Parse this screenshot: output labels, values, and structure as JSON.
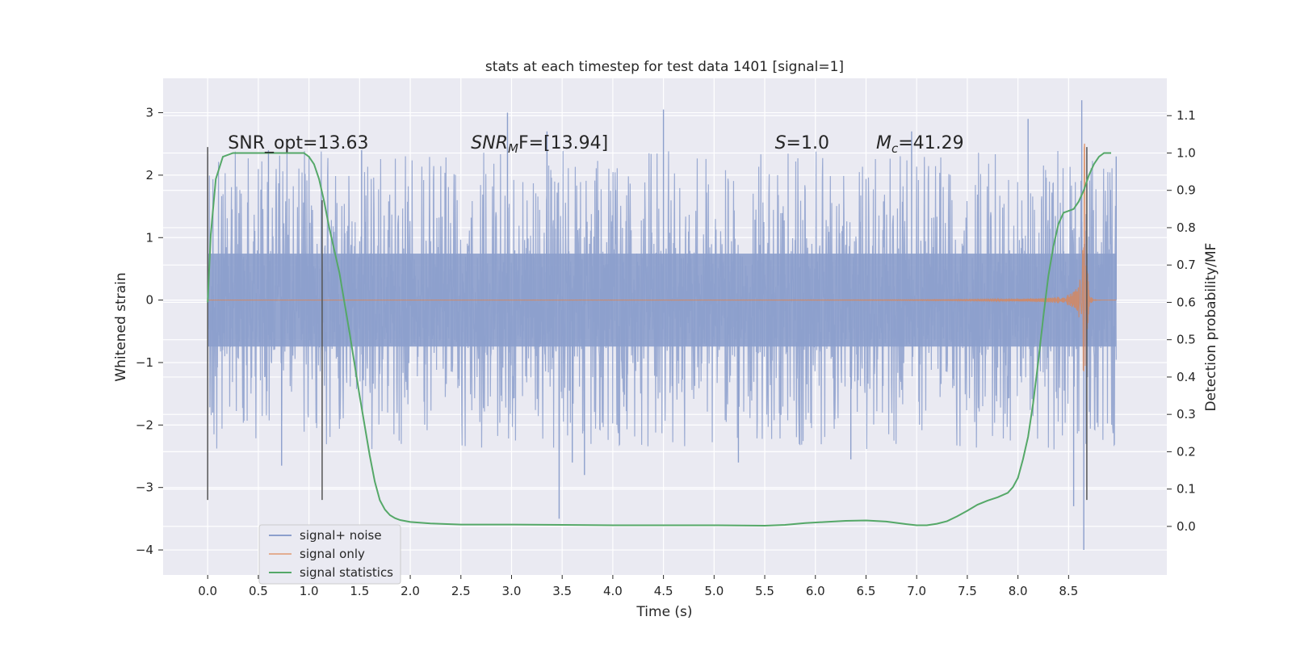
{
  "chart_data": {
    "type": "line",
    "title": "stats at each timestep for test data 1401 [signal=1]",
    "xlabel": "Time (s)",
    "ylabel": "Whitened strain",
    "ylabel_right": "Detection probability/MF",
    "xlim": [
      -0.44,
      9.47
    ],
    "ylim": [
      -4.4,
      3.55
    ],
    "ylim_right": [
      -0.13,
      1.2
    ],
    "x_ticks": [
      0.0,
      0.5,
      1.0,
      1.5,
      2.0,
      2.5,
      3.0,
      3.5,
      4.0,
      4.5,
      5.0,
      5.5,
      6.0,
      6.5,
      7.0,
      7.5,
      8.0,
      8.5
    ],
    "x_tick_labels": [
      "0.0",
      "0.5",
      "1.0",
      "1.5",
      "2.0",
      "2.5",
      "3.0",
      "3.5",
      "4.0",
      "4.5",
      "5.0",
      "5.5",
      "6.0",
      "6.5",
      "7.0",
      "7.5",
      "8.0",
      "8.5"
    ],
    "y_ticks": [
      3,
      2,
      1,
      0,
      -1,
      -2,
      -3,
      -4
    ],
    "y_tick_labels": [
      "3",
      "2",
      "1",
      "0",
      "−1",
      "−2",
      "−3",
      "−4"
    ],
    "y_ticks_right": [
      1.1,
      1.0,
      0.9,
      0.8,
      0.7,
      0.6,
      0.5,
      0.4,
      0.3,
      0.2,
      0.1,
      0.0
    ],
    "y_tick_labels_right": [
      "1.1",
      "1.0",
      "0.9",
      "0.8",
      "0.7",
      "0.6",
      "0.5",
      "0.4",
      "0.3",
      "0.2",
      "0.1",
      "0.0"
    ],
    "grid": true,
    "legend_position": "lower-left",
    "annotations": [
      {
        "prefix": "SNR_opt=13.63",
        "italic": "",
        "sub": "",
        "suffix": "",
        "x": 0.2
      },
      {
        "prefix": "",
        "italic": "SNR",
        "sub": "M",
        "suffix": "F=[13.94]",
        "x": 2.6
      },
      {
        "prefix": "",
        "italic": "S",
        "sub": "",
        "suffix": "=1.0",
        "x": 5.6
      },
      {
        "prefix": "",
        "italic": "M",
        "sub": "c",
        "suffix": "=41.29",
        "x": 6.6
      }
    ],
    "annotation_y": 2.5,
    "vlines": [
      {
        "x": 0.0,
        "ymin": -3.2,
        "ymax": 2.45
      },
      {
        "x": 1.13,
        "ymin": -3.2,
        "ymax": 1.6
      },
      {
        "x": 8.68,
        "ymin": -3.2,
        "ymax": 2.45
      }
    ],
    "series": [
      {
        "name": "signal+ noise",
        "color": "#8c9fcc",
        "axis": "left",
        "x_range": [
          0.0,
          8.97
        ],
        "core_amplitude": 1.2,
        "typical_peak": 2.0,
        "spikes": [
          [
            0.0,
            2.3
          ],
          [
            0.05,
            -1.8
          ],
          [
            0.6,
            2.4
          ],
          [
            0.73,
            -2.65
          ],
          [
            1.52,
            2.4
          ],
          [
            2.96,
            3.0
          ],
          [
            3.35,
            2.7
          ],
          [
            3.47,
            -3.5
          ],
          [
            3.6,
            -2.6
          ],
          [
            3.72,
            -2.8
          ],
          [
            4.5,
            3.05
          ],
          [
            5.24,
            -2.6
          ],
          [
            6.35,
            -2.55
          ],
          [
            6.95,
            2.7
          ],
          [
            8.1,
            2.9
          ],
          [
            8.55,
            -3.3
          ],
          [
            8.63,
            3.2
          ],
          [
            8.65,
            -4.0
          ],
          [
            8.97,
            2.3
          ]
        ]
      },
      {
        "name": "signal only",
        "color": "#dd8452",
        "axis": "left",
        "chirp_start": 0.0,
        "chirp_merger": 8.66,
        "chirp_end": 8.97,
        "peak_amplitude": 2.5
      },
      {
        "name": "signal statistics",
        "color": "#55a868",
        "axis": "right",
        "x": [
          0.0,
          0.03,
          0.08,
          0.15,
          0.25,
          0.45,
          0.75,
          0.95,
          1.0,
          1.05,
          1.1,
          1.15,
          1.2,
          1.3,
          1.4,
          1.5,
          1.6,
          1.65,
          1.7,
          1.75,
          1.8,
          1.85,
          1.9,
          2.0,
          2.2,
          2.5,
          3.0,
          3.5,
          4.0,
          4.5,
          5.0,
          5.5,
          5.7,
          5.9,
          6.1,
          6.3,
          6.5,
          6.7,
          6.9,
          7.0,
          7.1,
          7.2,
          7.3,
          7.4,
          7.5,
          7.6,
          7.7,
          7.8,
          7.9,
          7.95,
          8.0,
          8.05,
          8.1,
          8.15,
          8.2,
          8.25,
          8.3,
          8.35,
          8.4,
          8.45,
          8.5,
          8.55,
          8.6,
          8.65,
          8.7,
          8.75,
          8.8,
          8.85,
          8.9,
          8.92
        ],
        "y": [
          0.6,
          0.78,
          0.93,
          0.99,
          1.0,
          1.0,
          1.0,
          1.0,
          0.99,
          0.97,
          0.93,
          0.87,
          0.8,
          0.68,
          0.52,
          0.35,
          0.19,
          0.12,
          0.07,
          0.045,
          0.03,
          0.022,
          0.017,
          0.012,
          0.008,
          0.005,
          0.005,
          0.004,
          0.003,
          0.003,
          0.003,
          0.002,
          0.004,
          0.009,
          0.012,
          0.015,
          0.016,
          0.013,
          0.006,
          0.003,
          0.003,
          0.007,
          0.014,
          0.027,
          0.042,
          0.058,
          0.069,
          0.078,
          0.09,
          0.105,
          0.13,
          0.18,
          0.24,
          0.33,
          0.44,
          0.56,
          0.67,
          0.75,
          0.81,
          0.84,
          0.845,
          0.85,
          0.87,
          0.9,
          0.94,
          0.97,
          0.99,
          1.0,
          1.0,
          1.0
        ]
      }
    ]
  }
}
